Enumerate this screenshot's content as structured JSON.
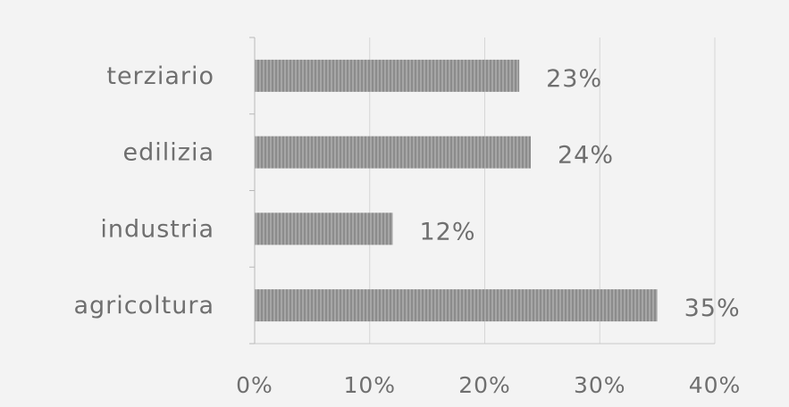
{
  "chart_data": {
    "type": "bar",
    "orientation": "horizontal",
    "categories": [
      "terziario",
      "edilizia",
      "industria",
      "agricoltura"
    ],
    "values": [
      23,
      24,
      12,
      35
    ],
    "value_labels": [
      "23%",
      "24%",
      "12%",
      "35%"
    ],
    "xlim": [
      0,
      40
    ],
    "x_ticks": [
      0,
      10,
      20,
      30,
      40
    ],
    "x_tick_labels": [
      "0%",
      "10%",
      "20%",
      "30%",
      "40%"
    ],
    "grid": true,
    "legend": "none",
    "bar_color": "#9a9a9a",
    "text_color": "#6f6f6f",
    "grid_color": "#d6d6d6"
  }
}
